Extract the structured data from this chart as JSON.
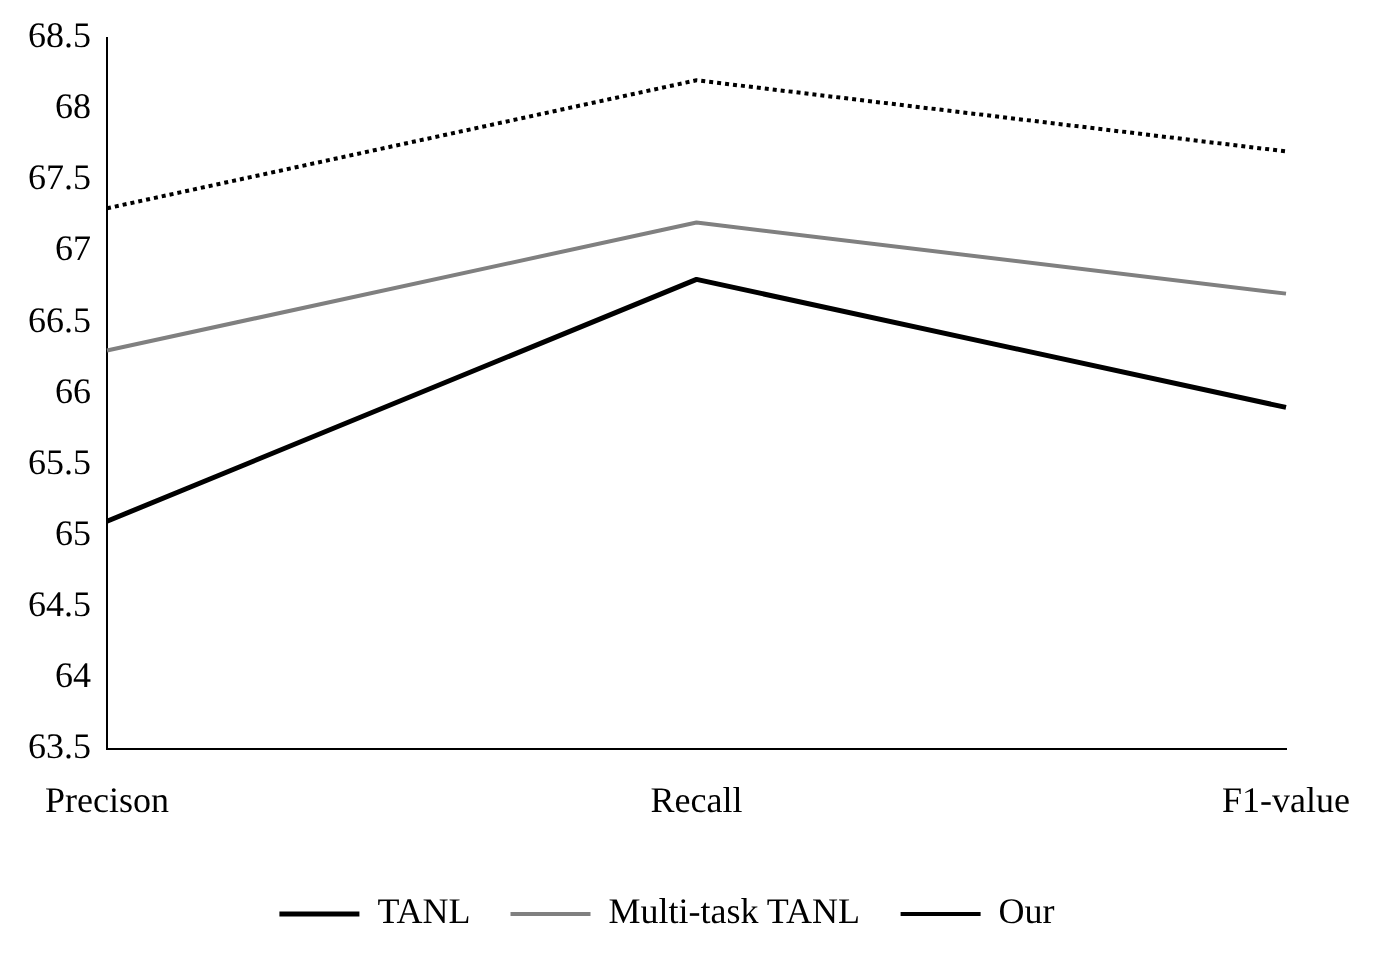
{
  "chart_data": {
    "type": "line",
    "categories": [
      "Precison",
      "Recall",
      "F1-value"
    ],
    "series": [
      {
        "name": "TANL",
        "color": "#000000",
        "values": [
          65.1,
          66.8,
          65.9
        ],
        "line_style": "solid"
      },
      {
        "name": "Multi-task TANL",
        "color": "#808080",
        "values": [
          66.3,
          67.2,
          66.7
        ],
        "line_style": "solid"
      },
      {
        "name": "Our",
        "color": "#000000",
        "values": [
          67.3,
          68.2,
          67.7
        ],
        "line_style": "dotted"
      }
    ],
    "ylim": [
      63.5,
      68.5
    ],
    "yticks": [
      63.5,
      64,
      64.5,
      65,
      65.5,
      66,
      66.5,
      67,
      67.5,
      68,
      68.5
    ],
    "grid": false,
    "legend": "bottom",
    "marker": "none"
  }
}
